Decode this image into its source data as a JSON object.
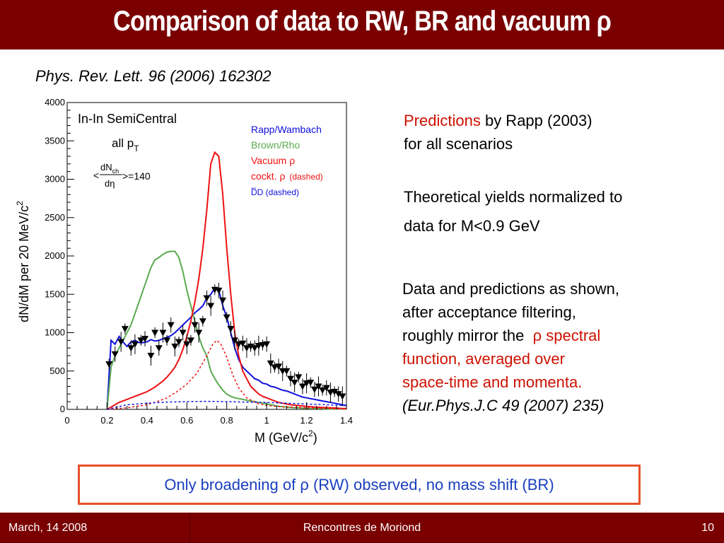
{
  "slide": {
    "title": "Comparison of data to RW, BR and vacuum ρ",
    "reference": "Phys. Rev. Lett. 96 (2006) 162302",
    "predictions_word": "Predictions",
    "predictions_rest": " by Rapp (2003)",
    "predictions_line2": "for all scenarios",
    "theory_line1": "Theoretical yields normalized to",
    "theory_line2": "data for M<0.9 GeV",
    "data_line1": "Data and predictions as shown,",
    "data_line2": "after acceptance filtering,",
    "data_line3_a": "roughly mirror the  ",
    "data_line3_b": "ρ spectral",
    "data_line4": "function, averaged over",
    "data_line5": "space-time and momenta.",
    "data_line6": "(Eur.Phys.J.C 49 (2007) 235)",
    "conclusion": "Only broadening of ρ (RW) observed,  no mass shift (BR)"
  },
  "footer": {
    "date": "March, 14 2008",
    "conference": "Rencontres de Moriond",
    "page": "10"
  },
  "colors": {
    "title_bar": "#7a0000",
    "rapp_wambach": "#1010dd",
    "brown_rho": "#5aaa50",
    "vacuum": "#ee1111",
    "cocktail": "#ee1111",
    "ddbar": "#1010dd",
    "data": "#000000"
  },
  "chart_data": {
    "type": "line",
    "title": "In-In SemiCentral",
    "annotation_pt": "all p",
    "annotation_pt_sub": "T",
    "annotation_mult_num": "dN",
    "annotation_mult_sub": "ch",
    "annotation_mult_den": "dη",
    "annotation_mult_val": ">=140",
    "annotation_mult_lt": "<",
    "xlabel": "M (GeV/c",
    "xlabel_sup": "2",
    "xlabel_end": ")",
    "ylabel": "dN/dM per 20 MeV/c",
    "ylabel_sup": "2",
    "xlim": [
      0,
      1.4
    ],
    "ylim": [
      0,
      4000
    ],
    "xticks": [
      "0",
      "0.2",
      "0.4",
      "0.6",
      "0.8",
      "1",
      "1.2",
      "1.4"
    ],
    "yticks": [
      "0",
      "500",
      "1000",
      "1500",
      "2000",
      "2500",
      "3000",
      "3500",
      "4000"
    ],
    "legend_position": "top-right",
    "series": [
      {
        "name": "Rapp/Wambach",
        "style": "solid",
        "color": "#1010dd",
        "x": [
          0.2,
          0.22,
          0.24,
          0.26,
          0.28,
          0.3,
          0.32,
          0.34,
          0.36,
          0.38,
          0.4,
          0.42,
          0.44,
          0.46,
          0.48,
          0.5,
          0.52,
          0.54,
          0.56,
          0.58,
          0.6,
          0.62,
          0.64,
          0.66,
          0.68,
          0.7,
          0.72,
          0.74,
          0.76,
          0.78,
          0.8,
          0.82,
          0.84,
          0.86,
          0.88,
          0.9,
          0.92,
          0.94,
          0.96,
          0.98,
          1.0,
          1.02,
          1.04,
          1.06,
          1.08,
          1.1,
          1.12,
          1.14,
          1.16,
          1.18,
          1.2,
          1.22,
          1.24,
          1.26,
          1.28,
          1.3,
          1.32,
          1.34,
          1.36,
          1.38,
          1.4
        ],
        "values": [
          0,
          900,
          850,
          950,
          880,
          820,
          880,
          900,
          870,
          870,
          880,
          910,
          890,
          900,
          920,
          940,
          960,
          1000,
          1050,
          1100,
          1150,
          1200,
          1260,
          1300,
          1350,
          1450,
          1500,
          1580,
          1550,
          1350,
          1200,
          1000,
          800,
          650,
          550,
          500,
          450,
          400,
          380,
          340,
          330,
          300,
          290,
          270,
          250,
          240,
          220,
          200,
          180,
          160,
          150,
          140,
          130,
          120,
          110,
          100,
          90,
          80,
          70,
          60,
          50
        ]
      },
      {
        "name": "Brown/Rho",
        "style": "solid",
        "color": "#5aaa50",
        "x": [
          0.2,
          0.22,
          0.24,
          0.26,
          0.28,
          0.3,
          0.32,
          0.34,
          0.36,
          0.38,
          0.4,
          0.42,
          0.44,
          0.46,
          0.48,
          0.5,
          0.52,
          0.54,
          0.56,
          0.58,
          0.6,
          0.62,
          0.64,
          0.66,
          0.68,
          0.7,
          0.72,
          0.74,
          0.76,
          0.78,
          0.8,
          0.82,
          0.84,
          0.86,
          0.88,
          0.9,
          0.92,
          0.94,
          0.96,
          0.98,
          1.0,
          1.02,
          1.04,
          1.06,
          1.08,
          1.1,
          1.12,
          1.14,
          1.16,
          1.18,
          1.2,
          1.22,
          1.24,
          1.26,
          1.28,
          1.3,
          1.32,
          1.34,
          1.36,
          1.38,
          1.4
        ],
        "values": [
          0,
          550,
          700,
          800,
          900,
          1000,
          1100,
          1250,
          1400,
          1550,
          1700,
          1850,
          1950,
          1980,
          2020,
          2050,
          2060,
          2060,
          1980,
          1800,
          1550,
          1350,
          1150,
          950,
          800,
          700,
          500,
          400,
          320,
          250,
          200,
          170,
          150,
          140,
          130,
          120,
          110,
          100,
          90,
          80,
          70,
          60,
          50,
          40,
          35,
          30,
          25,
          20,
          20,
          15,
          15,
          10,
          10,
          10,
          10,
          5,
          5,
          5,
          5,
          5,
          5
        ]
      },
      {
        "name": "Vacuum ρ",
        "style": "solid",
        "color": "#ee1111",
        "x": [
          0.2,
          0.22,
          0.24,
          0.26,
          0.28,
          0.3,
          0.32,
          0.34,
          0.36,
          0.38,
          0.4,
          0.42,
          0.44,
          0.46,
          0.48,
          0.5,
          0.52,
          0.54,
          0.56,
          0.58,
          0.6,
          0.62,
          0.64,
          0.66,
          0.68,
          0.7,
          0.72,
          0.74,
          0.76,
          0.78,
          0.8,
          0.82,
          0.84,
          0.86,
          0.88,
          0.9,
          0.92,
          0.94,
          0.96,
          0.98,
          1.0,
          1.02,
          1.04,
          1.06,
          1.08,
          1.1,
          1.12,
          1.14,
          1.16,
          1.18,
          1.2,
          1.22,
          1.24,
          1.26,
          1.28,
          1.3,
          1.32,
          1.34,
          1.36,
          1.38,
          1.4
        ],
        "values": [
          0,
          30,
          60,
          90,
          110,
          130,
          150,
          170,
          190,
          210,
          230,
          260,
          290,
          330,
          370,
          420,
          480,
          550,
          650,
          780,
          950,
          1150,
          1400,
          1700,
          2100,
          2600,
          3200,
          3350,
          3300,
          2800,
          2100,
          1500,
          1000,
          700,
          500,
          400,
          300,
          250,
          200,
          170,
          150,
          130,
          110,
          90,
          80,
          70,
          60,
          55,
          50,
          45,
          40,
          35,
          30,
          28,
          25,
          22,
          20,
          18,
          15,
          12,
          10
        ]
      },
      {
        "name": "cockt. ρ",
        "style": "dashed",
        "color": "#ee1111",
        "x": [
          0.2,
          0.3,
          0.4,
          0.45,
          0.5,
          0.55,
          0.6,
          0.65,
          0.7,
          0.73,
          0.75,
          0.77,
          0.8,
          0.83,
          0.86,
          0.9,
          0.95,
          1.0,
          1.1,
          1.2,
          1.3,
          1.4
        ],
        "values": [
          0,
          20,
          60,
          100,
          150,
          230,
          330,
          470,
          700,
          850,
          900,
          850,
          680,
          450,
          280,
          150,
          80,
          50,
          30,
          20,
          10,
          5
        ]
      },
      {
        "name": "D̅D (dashed)",
        "style": "dashed",
        "color": "#1010dd",
        "x": [
          0.2,
          0.3,
          0.4,
          0.5,
          0.6,
          0.7,
          0.8,
          0.9,
          1.0,
          1.1,
          1.2,
          1.3,
          1.4
        ],
        "values": [
          0,
          60,
          80,
          95,
          100,
          105,
          100,
          95,
          90,
          80,
          70,
          60,
          50
        ]
      },
      {
        "name": "data",
        "style": "points",
        "color": "#000000",
        "x": [
          0.21,
          0.24,
          0.27,
          0.29,
          0.32,
          0.34,
          0.37,
          0.39,
          0.42,
          0.44,
          0.46,
          0.48,
          0.5,
          0.52,
          0.54,
          0.56,
          0.58,
          0.6,
          0.62,
          0.64,
          0.66,
          0.68,
          0.7,
          0.72,
          0.74,
          0.76,
          0.78,
          0.8,
          0.82,
          0.84,
          0.86,
          0.88,
          0.9,
          0.92,
          0.94,
          0.96,
          0.98,
          1.0,
          1.02,
          1.04,
          1.06,
          1.08,
          1.1,
          1.12,
          1.14,
          1.16,
          1.18,
          1.2,
          1.22,
          1.24,
          1.26,
          1.28,
          1.3,
          1.32,
          1.34,
          1.36,
          1.38
        ],
        "values": [
          590,
          720,
          880,
          1050,
          800,
          850,
          900,
          920,
          700,
          1000,
          800,
          1000,
          900,
          1100,
          820,
          880,
          1000,
          850,
          900,
          1100,
          1000,
          1150,
          1450,
          1350,
          1560,
          1550,
          1420,
          1200,
          1050,
          900,
          850,
          860,
          800,
          820,
          800,
          830,
          840,
          850,
          600,
          550,
          560,
          500,
          500,
          400,
          350,
          420,
          300,
          340,
          350,
          260,
          300,
          250,
          280,
          220,
          230,
          200,
          170
        ]
      }
    ]
  }
}
